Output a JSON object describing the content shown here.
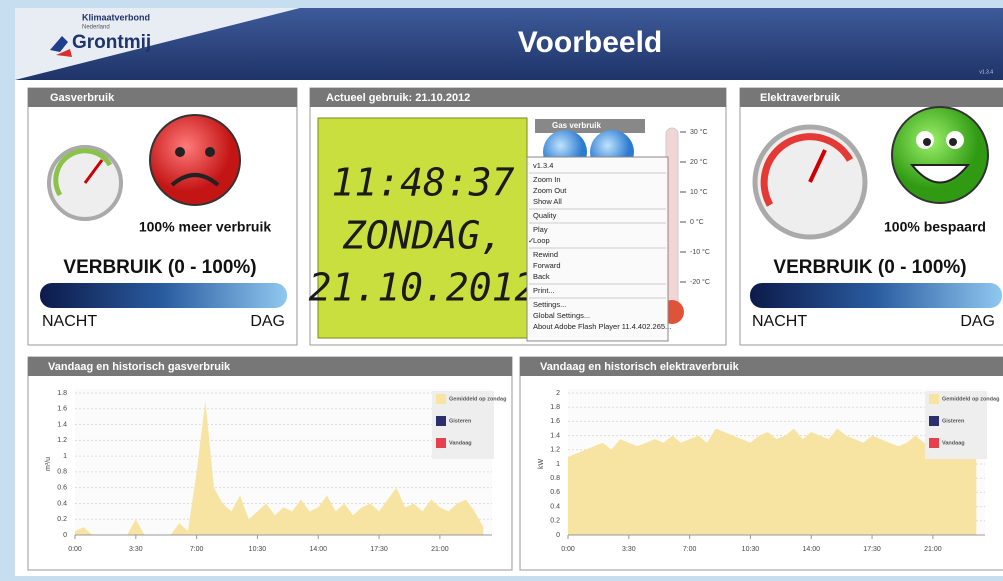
{
  "header": {
    "logo_top": "Klimaatverbond",
    "logo_sub": "Nederland",
    "logo_name": "Grontmij",
    "title": "Voorbeeld",
    "version": "v1.3.4"
  },
  "gas_panel": {
    "title": "Gasverbruik",
    "status": "100% meer verbruik",
    "range_label": "VERBRUIK (0 - 100%)",
    "left": "NACHT",
    "right": "DAG"
  },
  "current_panel": {
    "title": "Actueel gebruik: 21.10.2012",
    "time": "11:48:37",
    "day": "ZONDAG,",
    "date": "21.10.2012",
    "widget_title": "Gas verbruik",
    "thermometer_ticks": [
      {
        "value": 30,
        "label": "30 °C"
      },
      {
        "value": 20,
        "label": "20 °C"
      },
      {
        "value": 10,
        "label": "10 °C"
      },
      {
        "value": 0,
        "label": "0 °C"
      },
      {
        "value": -10,
        "label": "-10 °C"
      },
      {
        "value": -20,
        "label": "-20 °C"
      }
    ],
    "context_menu": [
      "v1.3.4",
      "Zoom In",
      "Zoom Out",
      "Show All",
      "Quality",
      "Play",
      "Loop",
      "Rewind",
      "Forward",
      "Back",
      "Print...",
      "Settings...",
      "Global Settings...",
      "About Adobe Flash Player 11.4.402.265..."
    ]
  },
  "elektra_panel": {
    "title": "Elektraverbruik",
    "status": "100% bespaard",
    "range_label": "VERBRUIK (0 - 100%)",
    "left": "NACHT",
    "right": "DAG"
  },
  "chart_data": [
    {
      "type": "area",
      "title": "Vandaag en historisch gasverbruik",
      "y_label": "m³/u",
      "x": [
        0,
        0.5,
        1,
        1.5,
        2,
        2.5,
        3,
        3.5,
        4,
        4.5,
        5,
        5.5,
        6,
        6.5,
        7,
        7.5,
        8,
        8.5,
        9,
        9.5,
        10,
        10.5,
        11,
        11.5,
        12,
        12.5,
        13,
        13.5,
        14,
        14.5,
        15,
        15.5,
        16,
        16.5,
        17,
        17.5,
        18,
        18.5,
        19,
        19.5,
        20,
        20.5,
        21,
        21.5,
        22,
        22.5,
        23,
        23.5
      ],
      "series": [
        {
          "name": "Gemiddeld op zondag",
          "color": "#f8e4a2",
          "values": [
            0.05,
            0.1,
            0,
            0,
            0,
            0,
            0,
            0.2,
            0,
            0,
            0,
            0,
            0.15,
            0.05,
            0.8,
            1.7,
            0.6,
            0.4,
            0.3,
            0.5,
            0.2,
            0.3,
            0.4,
            0.25,
            0.35,
            0.3,
            0.45,
            0.3,
            0.35,
            0.5,
            0.3,
            0.4,
            0.25,
            0.35,
            0.4,
            0.3,
            0.45,
            0.6,
            0.35,
            0.4,
            0.3,
            0.45,
            0.35,
            0.3,
            0.4,
            0.45,
            0.3,
            0.1
          ]
        },
        {
          "name": "Gisteren",
          "color": "#2b2f6c",
          "values": [
            null,
            null,
            null,
            null,
            null,
            null,
            null,
            null,
            null,
            null,
            null,
            null,
            null,
            null,
            null,
            null,
            null,
            null,
            null,
            null,
            null,
            null,
            null,
            null,
            null,
            null,
            null,
            null,
            null,
            null,
            null,
            null,
            null,
            null,
            null,
            null,
            null,
            null,
            null,
            null,
            null,
            null,
            null,
            null,
            null,
            null,
            null,
            null
          ]
        },
        {
          "name": "Vandaag",
          "color": "#e5404b",
          "values": [
            null,
            null,
            null,
            null,
            null,
            null,
            null,
            null,
            null,
            null,
            null,
            null,
            null,
            null,
            null,
            null,
            null,
            null,
            null,
            null,
            null,
            null,
            null,
            null,
            null,
            null,
            null,
            null,
            null,
            null,
            null,
            null,
            null,
            null,
            null,
            null,
            null,
            null,
            null,
            null,
            null,
            null,
            null,
            null,
            null,
            null,
            null,
            null
          ]
        }
      ],
      "xlim": [
        0,
        24
      ],
      "ylim": [
        0,
        1.8
      ],
      "xticks": [
        {
          "value": 0,
          "label": "0:00"
        },
        {
          "value": 3.5,
          "label": "3:30"
        },
        {
          "value": 7,
          "label": "7:00"
        },
        {
          "value": 10.5,
          "label": "10:30"
        },
        {
          "value": 14,
          "label": "14:00"
        },
        {
          "value": 17.5,
          "label": "17:30"
        },
        {
          "value": 21,
          "label": "21:00"
        }
      ],
      "yticks": [
        0,
        0.2,
        0.4,
        0.6,
        0.8,
        1,
        1.2,
        1.4,
        1.6,
        1.8
      ],
      "grid": true
    },
    {
      "type": "area",
      "title": "Vandaag en historisch elektraverbruik",
      "y_label": "kW",
      "x": [
        0,
        0.5,
        1,
        1.5,
        2,
        2.5,
        3,
        3.5,
        4,
        4.5,
        5,
        5.5,
        6,
        6.5,
        7,
        7.5,
        8,
        8.5,
        9,
        9.5,
        10,
        10.5,
        11,
        11.5,
        12,
        12.5,
        13,
        13.5,
        14,
        14.5,
        15,
        15.5,
        16,
        16.5,
        17,
        17.5,
        18,
        18.5,
        19,
        19.5,
        20,
        20.5,
        21,
        21.5,
        22,
        22.5,
        23,
        23.5
      ],
      "series": [
        {
          "name": "Gemiddeld op zondag",
          "color": "#f8e4a2",
          "values": [
            1.1,
            1.15,
            1.2,
            1.25,
            1.3,
            1.2,
            1.35,
            1.3,
            1.25,
            1.3,
            1.35,
            1.3,
            1.4,
            1.3,
            1.35,
            1.4,
            1.3,
            1.5,
            1.45,
            1.4,
            1.35,
            1.3,
            1.4,
            1.45,
            1.35,
            1.4,
            1.5,
            1.35,
            1.45,
            1.4,
            1.35,
            1.5,
            1.4,
            1.35,
            1.3,
            1.4,
            1.35,
            1.3,
            1.25,
            1.3,
            1.4,
            1.3,
            1.3,
            1.25,
            1.2,
            1.25,
            1.2,
            1.15
          ]
        },
        {
          "name": "Gisteren",
          "color": "#2b2f6c",
          "values": [
            null,
            null,
            null,
            null,
            null,
            null,
            null,
            null,
            null,
            null,
            null,
            null,
            null,
            null,
            null,
            null,
            null,
            null,
            null,
            null,
            null,
            null,
            null,
            null,
            null,
            null,
            null,
            null,
            null,
            null,
            null,
            null,
            null,
            null,
            null,
            null,
            null,
            null,
            null,
            null,
            null,
            null,
            null,
            null,
            null,
            null,
            null,
            null
          ]
        },
        {
          "name": "Vandaag",
          "color": "#e5404b",
          "values": [
            null,
            null,
            null,
            null,
            null,
            null,
            null,
            null,
            null,
            null,
            null,
            null,
            null,
            null,
            null,
            null,
            null,
            null,
            null,
            null,
            null,
            null,
            null,
            null,
            null,
            null,
            null,
            null,
            null,
            null,
            null,
            null,
            null,
            null,
            null,
            null,
            null,
            null,
            null,
            null,
            null,
            null,
            null,
            null,
            null,
            null,
            null,
            null
          ]
        }
      ],
      "xlim": [
        0,
        24
      ],
      "ylim": [
        0,
        2
      ],
      "xticks": [
        {
          "value": 0,
          "label": "0:00"
        },
        {
          "value": 3.5,
          "label": "3:30"
        },
        {
          "value": 7,
          "label": "7:00"
        },
        {
          "value": 10.5,
          "label": "10:30"
        },
        {
          "value": 14,
          "label": "14:00"
        },
        {
          "value": 17.5,
          "label": "17:30"
        },
        {
          "value": 21,
          "label": "21:00"
        }
      ],
      "yticks": [
        0,
        0.2,
        0.4,
        0.6,
        0.8,
        1,
        1.2,
        1.4,
        1.6,
        1.8,
        2
      ],
      "grid": true
    }
  ]
}
